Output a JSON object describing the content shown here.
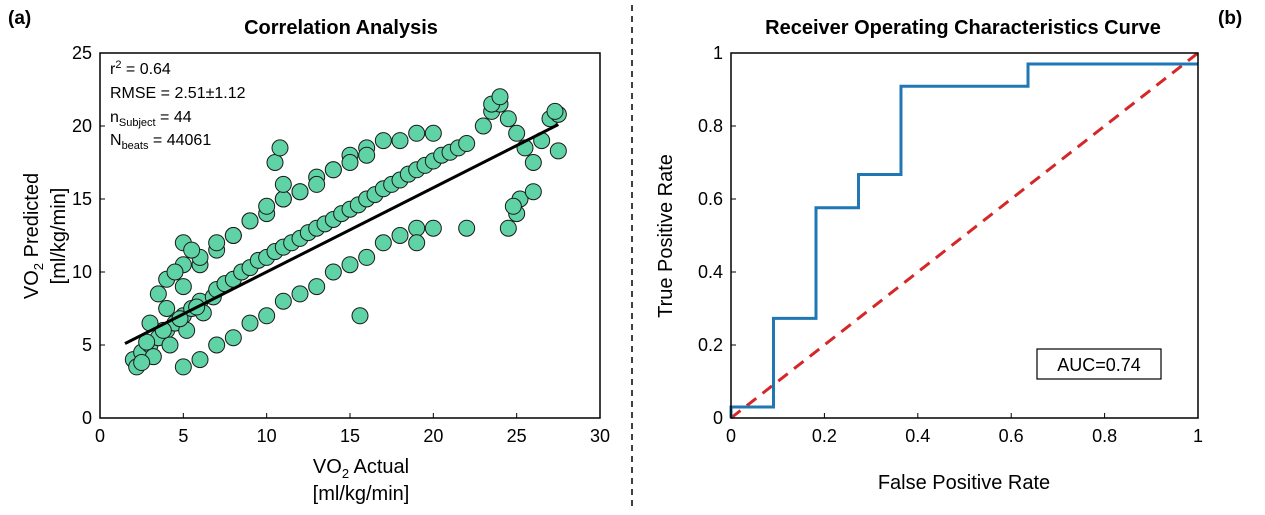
{
  "chart_data": [
    {
      "panel_label": "(a)",
      "type": "scatter",
      "title": "Correlation Analysis",
      "xlabel": {
        "line1_main": "VO",
        "line1_sub": "2",
        "line1_rest": " Actual",
        "line2": "[ml/kg/min]"
      },
      "ylabel": {
        "line1_main": "VO",
        "line1_sub": "2",
        "line1_rest": " Predicted",
        "line2": "[ml/kg/min]"
      },
      "xlim": [
        0,
        30
      ],
      "ylim": [
        0,
        25
      ],
      "xticks": [
        "0",
        "5",
        "10",
        "15",
        "20",
        "25",
        "30"
      ],
      "yticks": [
        "0",
        "5",
        "10",
        "15",
        "20",
        "25"
      ],
      "grid": false,
      "point_color": "#5fd3a6",
      "point_edge_color": "#1a1a1a",
      "fit_line_color": "#000000",
      "fit_line": {
        "x": [
          1.5,
          27.5
        ],
        "y": [
          5.1,
          20.1
        ]
      },
      "annotations": {
        "r2_main": "r",
        "r2_sup": "2",
        "r2_value": " = 0.64",
        "rmse": "RMSE = 2.51±1.12",
        "n_main": "n",
        "n_sub": "Subject",
        "n_value": " = 44",
        "N_main": "N",
        "N_sub": "beats",
        "N_value": " = 44061"
      },
      "series": [
        {
          "x": [
            2,
            2.5,
            3,
            3.5,
            4,
            4.5,
            5,
            5.5,
            6,
            2.2,
            3.2,
            4.2,
            5.2,
            6.2,
            2.8,
            3.8,
            4.8,
            5.8,
            6.8,
            7,
            7.5,
            8,
            8.5,
            9,
            9.5,
            10,
            10.5,
            11,
            11.5,
            12,
            12.5,
            13,
            13.5,
            14,
            14.5,
            15,
            15.5,
            16,
            16.5,
            17,
            17.5,
            18,
            18.5,
            19,
            19.5,
            20,
            20.5,
            21,
            21.5,
            22,
            23,
            23.5,
            24,
            24.5,
            25,
            25.5,
            26,
            26.5,
            27,
            27.5,
            3,
            4,
            5,
            6,
            7,
            8,
            9,
            10,
            11,
            12,
            13,
            14,
            15,
            16,
            17,
            18,
            19,
            20,
            5,
            6,
            7,
            8,
            9,
            10,
            11,
            12,
            13,
            14,
            15,
            16,
            17,
            18,
            19,
            4,
            5,
            6,
            7,
            8,
            9,
            10,
            11,
            12,
            13,
            14,
            15,
            16,
            10.5,
            10.8,
            11,
            15.6,
            24.5,
            25,
            25.2,
            24.8,
            23.5,
            24,
            26,
            27.5,
            27.3,
            22,
            19,
            20,
            5,
            5.5,
            4.5,
            3.5,
            2.5
          ],
          "y": [
            4,
            4.5,
            5,
            5.5,
            6,
            6.5,
            7,
            7.5,
            8,
            3.5,
            4.2,
            5,
            6,
            7.2,
            5.2,
            6,
            6.8,
            7.6,
            8.3,
            8.8,
            9.2,
            9.5,
            10,
            10.3,
            10.8,
            11,
            11.4,
            11.7,
            12,
            12.3,
            12.7,
            13,
            13.3,
            13.6,
            14,
            14.3,
            14.6,
            15,
            15.3,
            15.7,
            16,
            16.3,
            16.7,
            17,
            17.3,
            17.6,
            18,
            18.2,
            18.5,
            18.8,
            20,
            21,
            21.5,
            20.5,
            19.5,
            18.5,
            17.5,
            19,
            20.5,
            20.8,
            6.5,
            7.5,
            9,
            10.5,
            11.5,
            12.5,
            13.5,
            14,
            15,
            15.5,
            16.5,
            17,
            18,
            18.5,
            19,
            19,
            19.5,
            19.5,
            3.5,
            4,
            5,
            5.5,
            6.5,
            7,
            8,
            8.5,
            9,
            10,
            10.5,
            11,
            12,
            12.5,
            13,
            9.5,
            10.5,
            11,
            12,
            12.5,
            13.5,
            14.5,
            15,
            15.5,
            16,
            17,
            17.5,
            18,
            17.5,
            18.5,
            16,
            7,
            13,
            14,
            15,
            14.5,
            21.5,
            22,
            15.5,
            18.3,
            21,
            13,
            12,
            13,
            12,
            11.5,
            10,
            8.5,
            3.8
          ]
        }
      ]
    },
    {
      "panel_label": "(b)",
      "type": "line",
      "title": "Receiver Operating Characteristics Curve",
      "xlabel": "False Positive Rate",
      "ylabel": "True Positive Rate",
      "xlim": [
        0,
        1
      ],
      "ylim": [
        0,
        1
      ],
      "xticks": [
        "0",
        "0.2",
        "0.4",
        "0.6",
        "0.8",
        "1"
      ],
      "yticks": [
        "0",
        "0.2",
        "0.4",
        "0.6",
        "0.8",
        "1"
      ],
      "grid": false,
      "auc_label": "AUC=0.74",
      "series": [
        {
          "style": "solid",
          "color": "#1f77b4",
          "x": [
            0,
            0,
            0.091,
            0.091,
            0.182,
            0.182,
            0.273,
            0.273,
            0.364,
            0.364,
            0.636,
            0.636,
            1
          ],
          "y": [
            0,
            0.03,
            0.03,
            0.273,
            0.273,
            0.576,
            0.576,
            0.667,
            0.667,
            0.909,
            0.909,
            0.97,
            0.97
          ]
        },
        {
          "style": "dashed",
          "color": "#d62728",
          "x": [
            0,
            1
          ],
          "y": [
            0,
            1
          ]
        }
      ]
    }
  ]
}
